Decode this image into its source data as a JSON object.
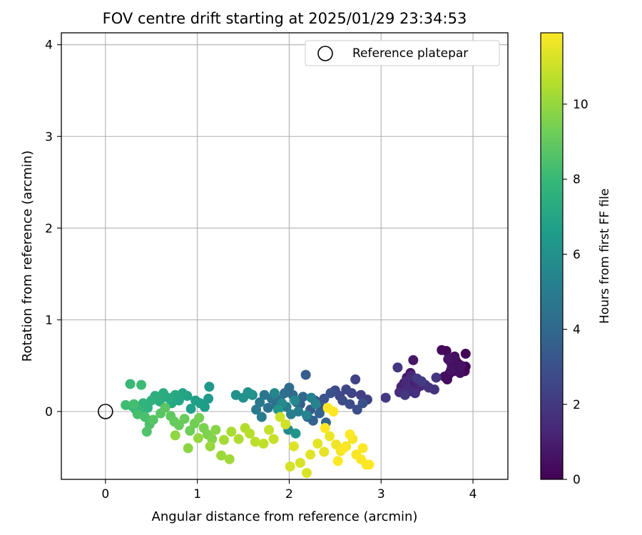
{
  "chart_data": {
    "type": "scatter",
    "title": "FOV centre drift starting at 2025/01/29 23:34:53",
    "xlabel": "Angular distance from reference (arcmin)",
    "ylabel": "Rotation from reference (arcmin)",
    "xlim": [
      -0.48,
      4.38
    ],
    "ylim": [
      -0.74,
      4.13
    ],
    "x_ticks": [
      0,
      1,
      2,
      3,
      4
    ],
    "y_ticks": [
      0,
      1,
      2,
      3,
      4
    ],
    "grid": true,
    "legend": {
      "location": "upper right",
      "entries": [
        "Reference platepar"
      ]
    },
    "reference_point": {
      "x": 0,
      "y": 0,
      "label": "Reference platepar",
      "marker": "open circle"
    },
    "colorbar": {
      "label": "Hours from first FF file",
      "range": [
        0,
        11.9
      ],
      "ticks": [
        0,
        2,
        4,
        6,
        8,
        10
      ],
      "colormap": "viridis"
    },
    "colors": {
      "viridis": [
        "#440154",
        "#482878",
        "#3e4989",
        "#31688e",
        "#26828e",
        "#1f9e89",
        "#35b779",
        "#6ece58",
        "#b5de2b",
        "#fde725"
      ],
      "grid": "#b0b0b0",
      "reference_marker": "#000000"
    },
    "series": [
      {
        "values_as_x_y_hours": [
          [
            3.92,
            0.63,
            0.05
          ],
          [
            3.92,
            0.49,
            0.08
          ],
          [
            3.91,
            0.44,
            0.11
          ],
          [
            3.84,
            0.52,
            0.14
          ],
          [
            3.81,
            0.56,
            0.17
          ],
          [
            3.77,
            0.49,
            0.2
          ],
          [
            3.74,
            0.41,
            0.23
          ],
          [
            3.71,
            0.66,
            0.26
          ],
          [
            3.66,
            0.67,
            0.29
          ],
          [
            3.79,
            0.44,
            0.32
          ],
          [
            3.72,
            0.35,
            0.35
          ],
          [
            3.83,
            0.47,
            0.38
          ],
          [
            3.75,
            0.55,
            0.41
          ],
          [
            3.86,
            0.42,
            0.44
          ],
          [
            3.69,
            0.38,
            0.47
          ],
          [
            3.78,
            0.52,
            0.5
          ],
          [
            3.8,
            0.6,
            0.53
          ],
          [
            3.87,
            0.5,
            0.56
          ],
          [
            3.76,
            0.45,
            0.59
          ],
          [
            3.73,
            0.57,
            0.62
          ],
          [
            3.35,
            0.56,
            0.7
          ],
          [
            3.32,
            0.42,
            0.76
          ],
          [
            3.28,
            0.37,
            0.82
          ],
          [
            3.25,
            0.31,
            0.88
          ],
          [
            3.3,
            0.28,
            0.94
          ],
          [
            3.36,
            0.34,
            1.0
          ],
          [
            3.4,
            0.3,
            1.06
          ],
          [
            3.22,
            0.27,
            1.12
          ],
          [
            3.31,
            0.22,
            1.18
          ],
          [
            3.38,
            0.24,
            1.24
          ],
          [
            3.43,
            0.28,
            1.3
          ],
          [
            3.27,
            0.33,
            1.36
          ],
          [
            3.33,
            0.39,
            1.42
          ],
          [
            3.2,
            0.21,
            1.48
          ],
          [
            3.29,
            0.25,
            1.54
          ],
          [
            3.37,
            0.2,
            1.6
          ],
          [
            3.48,
            0.29,
            1.66
          ],
          [
            3.52,
            0.26,
            1.72
          ],
          [
            3.58,
            0.24,
            1.78
          ],
          [
            3.6,
            0.37,
            1.84
          ],
          [
            3.18,
            0.48,
            1.9
          ],
          [
            3.26,
            0.18,
            1.96
          ],
          [
            3.05,
            0.15,
            2.02
          ],
          [
            3.39,
            0.36,
            2.08
          ],
          [
            3.44,
            0.33,
            2.14
          ],
          [
            2.85,
            0.13,
            2.2
          ],
          [
            2.78,
            0.18,
            2.28
          ],
          [
            2.72,
            0.35,
            2.36
          ],
          [
            2.68,
            0.2,
            2.44
          ],
          [
            2.62,
            0.24,
            2.52
          ],
          [
            2.55,
            0.17,
            2.6
          ],
          [
            2.5,
            0.23,
            2.68
          ],
          [
            2.58,
            0.12,
            2.76
          ],
          [
            2.66,
            0.08,
            2.84
          ],
          [
            2.74,
            0.02,
            2.92
          ],
          [
            2.8,
            0.09,
            3.0
          ],
          [
            2.45,
            0.2,
            3.08
          ],
          [
            2.38,
            0.14,
            3.16
          ],
          [
            2.33,
            0.06,
            3.24
          ],
          [
            2.28,
            0.12,
            3.32
          ],
          [
            2.23,
            0.02,
            3.4
          ],
          [
            2.18,
            0.4,
            3.48
          ],
          [
            2.12,
            0.08,
            3.56
          ],
          [
            2.2,
            -0.06,
            3.64
          ],
          [
            2.26,
            -0.1,
            3.72
          ],
          [
            2.33,
            -0.02,
            3.8
          ],
          [
            2.4,
            -0.12,
            3.88
          ],
          [
            2.15,
            0.16,
            3.96
          ],
          [
            2.08,
            0.1,
            4.04
          ],
          [
            2.04,
            0.18,
            4.12
          ],
          [
            2.0,
            0.26,
            4.2
          ],
          [
            1.95,
            0.2,
            4.28
          ],
          [
            1.9,
            0.13,
            4.36
          ],
          [
            1.86,
            0.07,
            4.44
          ],
          [
            1.81,
            0.14,
            4.52
          ],
          [
            1.77,
            0.04,
            4.6
          ],
          [
            1.73,
            0.18,
            4.68
          ],
          [
            1.68,
            0.1,
            4.76
          ],
          [
            1.64,
            0.02,
            4.84
          ],
          [
            1.7,
            -0.06,
            4.92
          ],
          [
            1.97,
            0.05,
            5.0
          ],
          [
            2.02,
            -0.03,
            5.08
          ],
          [
            2.1,
            0.0,
            5.16
          ],
          [
            2.24,
            0.15,
            5.24
          ],
          [
            2.29,
            0.08,
            5.32
          ],
          [
            2.19,
            -0.04,
            5.4
          ],
          [
            1.84,
            0.2,
            5.48
          ],
          [
            1.92,
            0.09,
            5.56
          ],
          [
            2.06,
            0.12,
            5.64
          ],
          [
            1.99,
            -0.2,
            5.72
          ],
          [
            1.6,
            0.18,
            5.8
          ],
          [
            1.55,
            0.21,
            5.88
          ],
          [
            1.5,
            0.15,
            5.96
          ],
          [
            1.42,
            0.18,
            6.04
          ],
          [
            1.58,
            0.19,
            6.12
          ],
          [
            2.07,
            -0.24,
            6.2
          ],
          [
            1.88,
            0.02,
            6.28
          ],
          [
            1.13,
            0.27,
            6.36
          ],
          [
            1.12,
            0.14,
            6.44
          ],
          [
            1.08,
            0.05,
            6.52
          ],
          [
            1.03,
            0.09,
            6.6
          ],
          [
            0.98,
            0.12,
            6.68
          ],
          [
            0.93,
            0.03,
            6.76
          ],
          [
            0.89,
            0.17,
            6.84
          ],
          [
            0.84,
            0.2,
            6.92
          ],
          [
            0.8,
            0.12,
            7.0
          ],
          [
            0.76,
            0.18,
            7.08
          ],
          [
            0.72,
            0.09,
            7.16
          ],
          [
            0.68,
            0.15,
            7.24
          ],
          [
            0.63,
            0.2,
            7.32
          ],
          [
            0.59,
            0.11,
            7.4
          ],
          [
            0.54,
            0.17,
            7.48
          ],
          [
            0.5,
            0.12,
            7.56
          ],
          [
            0.46,
            0.04,
            7.64
          ],
          [
            0.41,
            0.09,
            7.72
          ],
          [
            0.37,
            -0.01,
            7.8
          ],
          [
            0.33,
            0.02,
            7.88
          ],
          [
            0.29,
            0.06,
            7.96
          ],
          [
            0.27,
            0.3,
            8.04
          ],
          [
            0.39,
            0.29,
            8.12
          ],
          [
            0.22,
            0.07,
            8.2
          ],
          [
            0.31,
            0.08,
            8.28
          ],
          [
            0.35,
            -0.03,
            8.36
          ],
          [
            0.43,
            -0.06,
            8.44
          ],
          [
            0.48,
            -0.14,
            8.52
          ],
          [
            0.45,
            -0.22,
            8.6
          ],
          [
            0.52,
            -0.09,
            8.68
          ],
          [
            0.6,
            -0.02,
            8.76
          ],
          [
            0.65,
            0.04,
            8.84
          ],
          [
            0.71,
            -0.05,
            8.92
          ],
          [
            0.75,
            -0.11,
            9.0
          ],
          [
            0.8,
            -0.15,
            9.08
          ],
          [
            0.86,
            -0.08,
            9.16
          ],
          [
            0.92,
            -0.21,
            9.24
          ],
          [
            0.97,
            -0.13,
            9.32
          ],
          [
            1.02,
            -0.07,
            9.4
          ],
          [
            1.07,
            -0.18,
            9.48
          ],
          [
            1.11,
            -0.25,
            9.56
          ],
          [
            1.16,
            -0.3,
            9.64
          ],
          [
            1.2,
            -0.2,
            9.72
          ],
          [
            0.9,
            -0.4,
            9.8
          ],
          [
            0.76,
            -0.26,
            9.88
          ],
          [
            1.01,
            -0.29,
            9.96
          ],
          [
            1.14,
            -0.38,
            10.04
          ],
          [
            1.26,
            -0.48,
            10.12
          ],
          [
            1.35,
            -0.52,
            10.2
          ],
          [
            1.29,
            -0.31,
            10.28
          ],
          [
            1.37,
            -0.22,
            10.36
          ],
          [
            1.45,
            -0.3,
            10.44
          ],
          [
            1.52,
            -0.18,
            10.52
          ],
          [
            1.57,
            -0.24,
            10.6
          ],
          [
            1.63,
            -0.33,
            10.68
          ],
          [
            1.72,
            -0.35,
            10.76
          ],
          [
            1.78,
            -0.2,
            10.84
          ],
          [
            1.83,
            -0.3,
            10.92
          ],
          [
            1.9,
            -0.06,
            11.0
          ],
          [
            1.96,
            -0.14,
            11.08
          ],
          [
            2.01,
            -0.6,
            11.14
          ],
          [
            2.12,
            -0.56,
            11.2
          ],
          [
            2.19,
            -0.67,
            11.26
          ],
          [
            2.05,
            -0.38,
            11.32
          ],
          [
            2.23,
            -0.47,
            11.38
          ],
          [
            2.31,
            -0.35,
            11.44
          ],
          [
            2.38,
            -0.44,
            11.5
          ],
          [
            2.44,
            -0.27,
            11.56
          ],
          [
            2.51,
            -0.36,
            11.62
          ],
          [
            2.56,
            -0.43,
            11.68
          ],
          [
            2.62,
            -0.38,
            11.72
          ],
          [
            2.69,
            -0.3,
            11.76
          ],
          [
            2.73,
            -0.47,
            11.8
          ],
          [
            2.78,
            -0.52,
            11.83
          ],
          [
            2.84,
            -0.58,
            11.86
          ],
          [
            2.66,
            -0.25,
            11.88
          ],
          [
            2.53,
            -0.54,
            11.9
          ],
          [
            2.42,
            0.04,
            11.9
          ],
          [
            2.48,
            0.0,
            11.9
          ],
          [
            2.39,
            -0.18,
            11.9
          ],
          [
            2.59,
            -0.4,
            11.9
          ],
          [
            2.8,
            -0.4,
            11.9
          ],
          [
            2.87,
            -0.58,
            11.9
          ]
        ]
      }
    ]
  }
}
